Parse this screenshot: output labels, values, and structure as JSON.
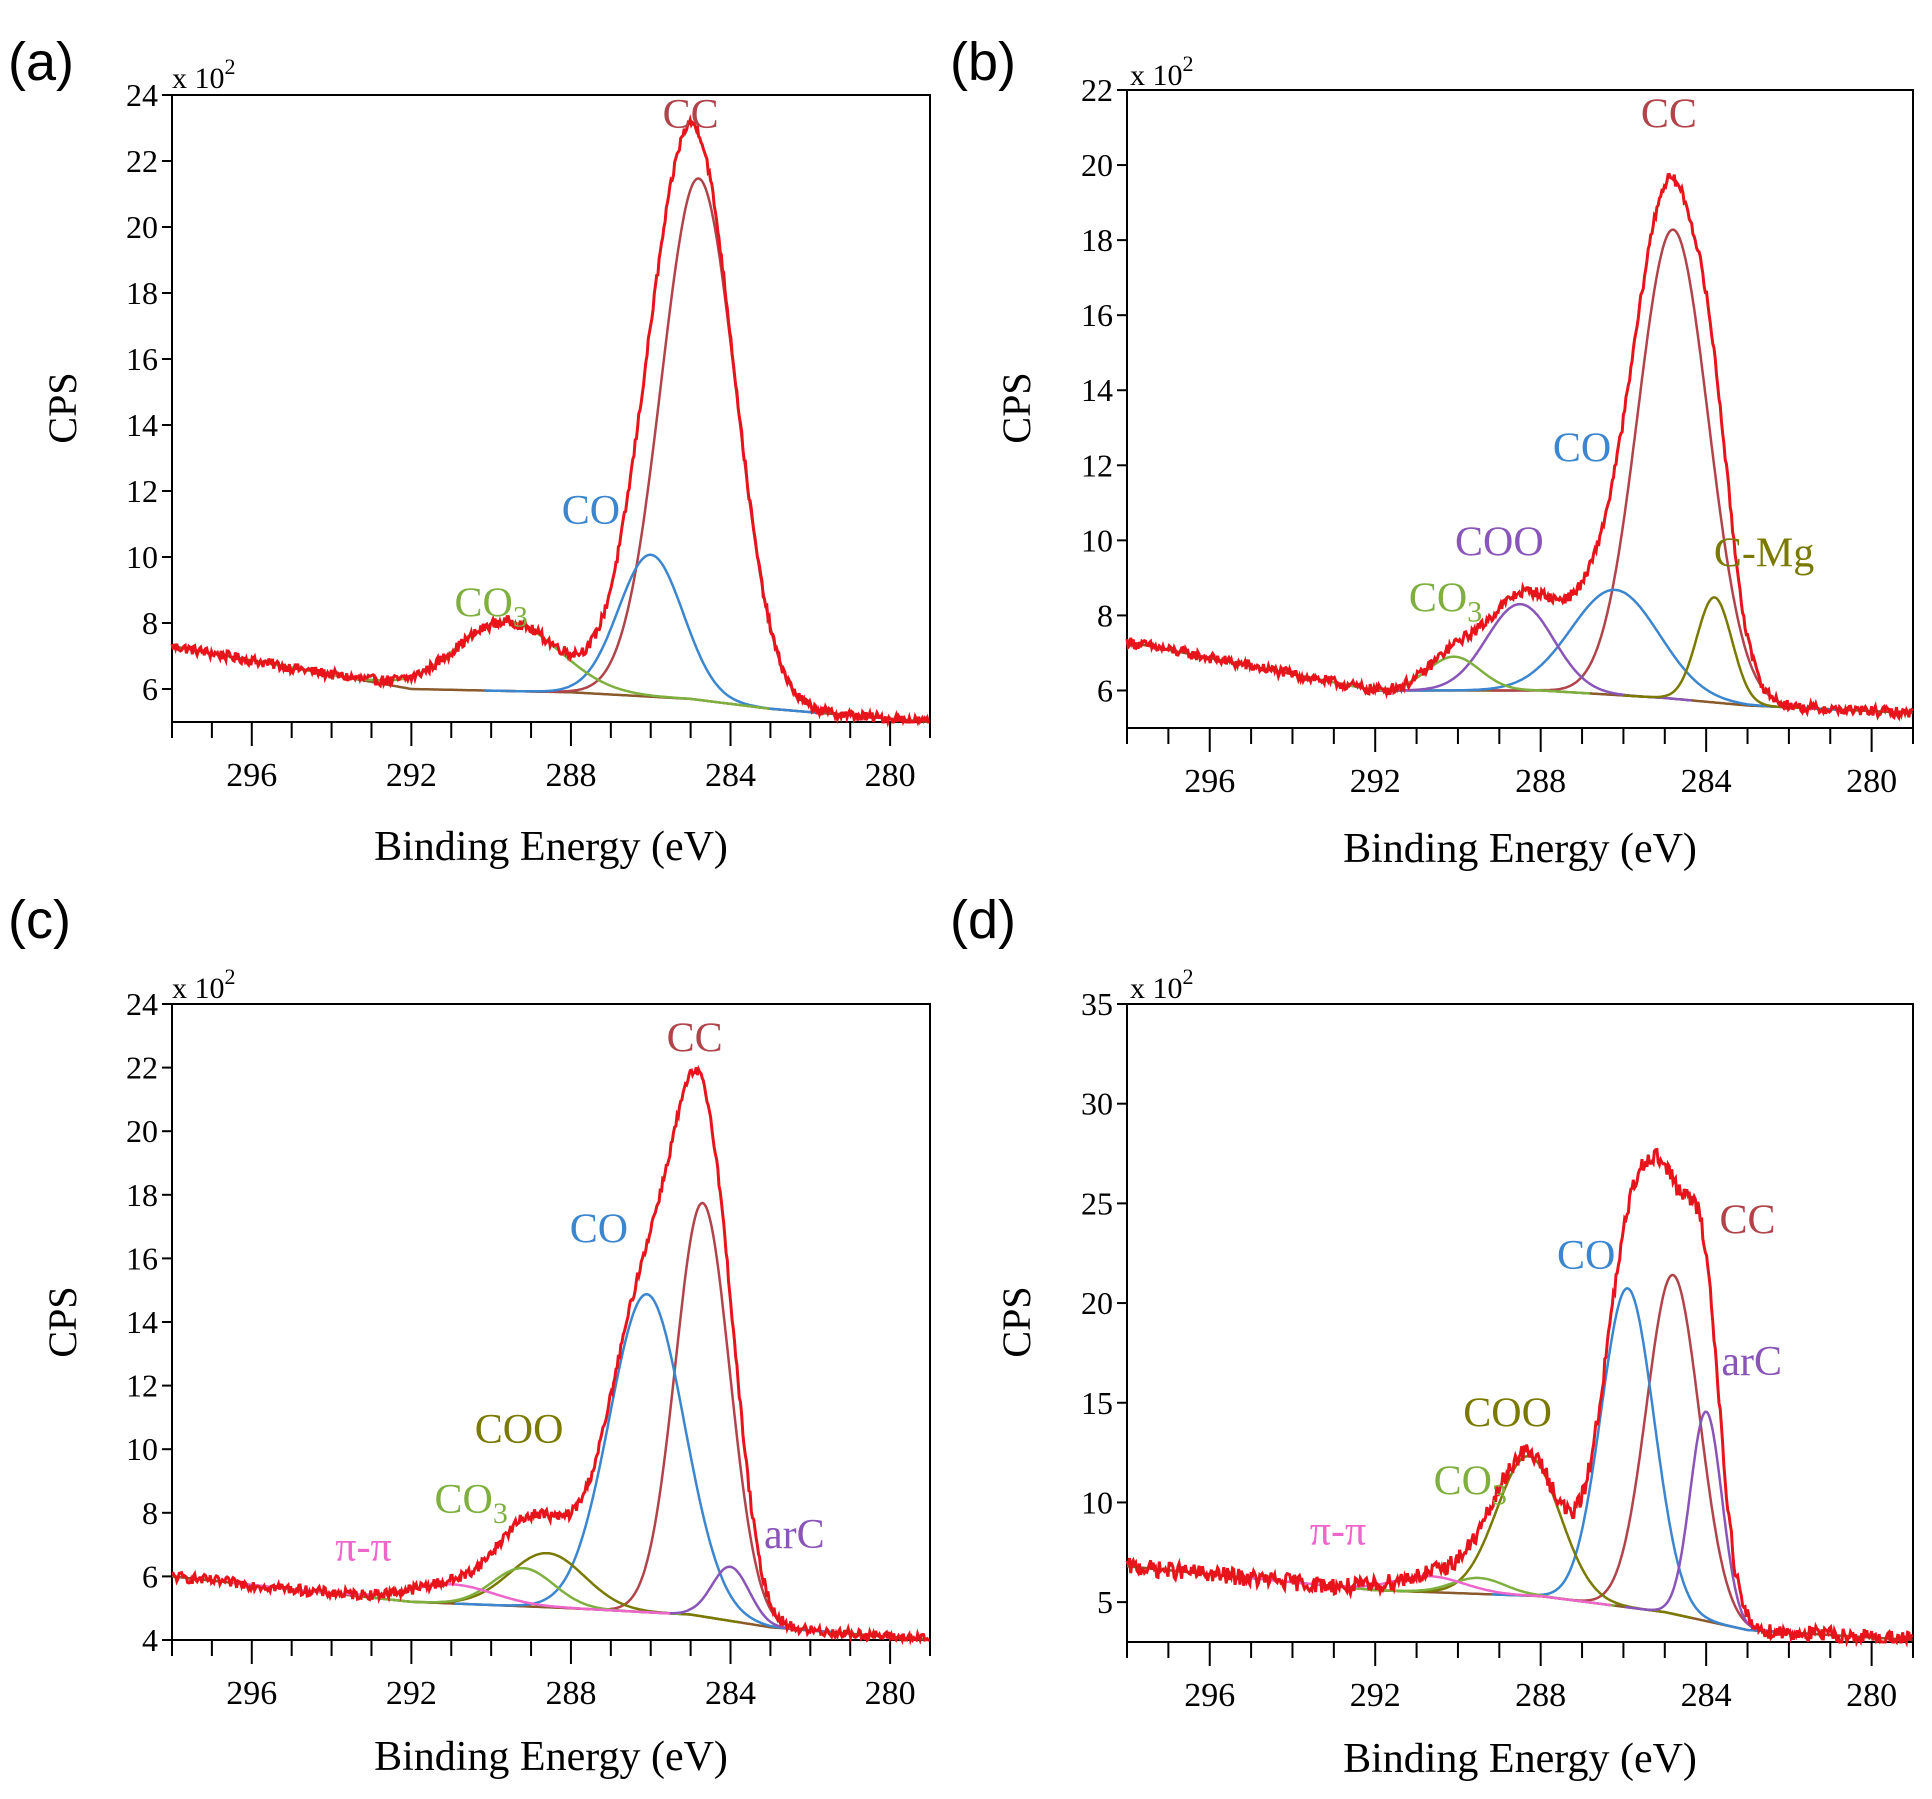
{
  "figure": {
    "panel_labels": [
      "(a)",
      "(b)",
      "(c)",
      "(d)"
    ]
  },
  "colors": {
    "envelope": "#e8141c",
    "background": "#8a5a2b",
    "CC": "#b0444a",
    "CO": "#3b86cf",
    "CO3": "#7fb03f",
    "COO_olive": "#7a7a00",
    "COO_purple": "#8a55b8",
    "C-Mg": "#7a7a00",
    "arC": "#8a55b8",
    "pi-pi": "#ee66cc",
    "axis": "#000000"
  },
  "chart_data": [
    {
      "type": "line",
      "panel": "(a)",
      "title": "",
      "xlabel": "Binding Energy (eV)",
      "ylabel": "CPS",
      "y_multiplier": "x 10",
      "y_multiplier_exp": "2",
      "xlim": [
        298,
        279
      ],
      "ylim": [
        5,
        24
      ],
      "xticks": [
        296,
        292,
        288,
        284,
        280
      ],
      "yticks": [
        6,
        8,
        10,
        12,
        14,
        16,
        18,
        20,
        22,
        24
      ],
      "envelope": {
        "name": "Envelope",
        "color": "#e8141c",
        "start_y": 7.3,
        "end_y": 5.0,
        "noise": 0.05
      },
      "background": {
        "points": [
          [
            298,
            7.3
          ],
          [
            292,
            6.0
          ],
          [
            288,
            5.9
          ],
          [
            285,
            5.7
          ],
          [
            283,
            5.4
          ],
          [
            279,
            5.0
          ]
        ]
      },
      "series": [
        {
          "name": "CC",
          "label": "CC",
          "center": 284.8,
          "amplitude": 15.8,
          "fwhm": 2.2
        },
        {
          "name": "CO",
          "label": "CO",
          "center": 286.0,
          "amplitude": 4.3,
          "fwhm": 1.9
        },
        {
          "name": "CO3",
          "label": "CO",
          "label_sub": "3",
          "center": 289.6,
          "amplitude": 2.1,
          "fwhm": 3.0
        }
      ],
      "annotations": [
        {
          "text": "CC",
          "x": 285.0,
          "y": 23.0
        },
        {
          "text": "CO",
          "x": 287.5,
          "y": 11.0
        },
        {
          "text": "CO",
          "sub": "3",
          "x": 290.0,
          "y": 8.2
        }
      ]
    },
    {
      "type": "line",
      "panel": "(b)",
      "title": "",
      "xlabel": "Binding Energy (eV)",
      "ylabel": "CPS",
      "y_multiplier": "x 10",
      "y_multiplier_exp": "2",
      "xlim": [
        298,
        279
      ],
      "ylim": [
        5,
        22
      ],
      "xticks": [
        296,
        292,
        288,
        284,
        280
      ],
      "yticks": [
        6,
        8,
        10,
        12,
        14,
        16,
        18,
        20,
        22
      ],
      "envelope": {
        "name": "Envelope",
        "color": "#e8141c",
        "start_y": 7.3,
        "end_y": 5.4,
        "noise": 0.05
      },
      "background": {
        "points": [
          [
            298,
            7.3
          ],
          [
            292,
            6.0
          ],
          [
            288,
            6.0
          ],
          [
            285,
            5.8
          ],
          [
            283,
            5.6
          ],
          [
            279,
            5.4
          ]
        ]
      },
      "series": [
        {
          "name": "CC",
          "label": "CC",
          "center": 284.8,
          "amplitude": 12.5,
          "fwhm": 2.0
        },
        {
          "name": "CO",
          "label": "CO",
          "center": 286.2,
          "amplitude": 2.8,
          "fwhm": 2.5
        },
        {
          "name": "COO",
          "label": "COO",
          "center": 288.5,
          "amplitude": 2.3,
          "fwhm": 1.9
        },
        {
          "name": "CO3",
          "label": "CO",
          "label_sub": "3",
          "center": 290.1,
          "amplitude": 0.9,
          "fwhm": 1.5
        },
        {
          "name": "C-Mg",
          "label": "C-Mg",
          "center": 283.8,
          "amplitude": 2.8,
          "fwhm": 1.0
        }
      ],
      "annotations": [
        {
          "text": "CC",
          "x": 284.9,
          "y": 21.0
        },
        {
          "text": "COO",
          "x": 289.0,
          "y": 9.6
        },
        {
          "text": "CO",
          "x": 287.0,
          "y": 12.1
        },
        {
          "text": "CO",
          "sub": "3",
          "x": 290.3,
          "y": 8.1
        },
        {
          "text": "C-Mg",
          "x": 282.6,
          "y": 9.3
        }
      ]
    },
    {
      "type": "line",
      "panel": "(c)",
      "title": "",
      "xlabel": "Binding Energy (eV)",
      "ylabel": "CPS",
      "y_multiplier": "x 10",
      "y_multiplier_exp": "2",
      "xlim": [
        298,
        279
      ],
      "ylim": [
        4,
        24
      ],
      "xticks": [
        296,
        292,
        288,
        284,
        280
      ],
      "yticks": [
        4,
        6,
        8,
        10,
        12,
        14,
        16,
        18,
        20,
        22,
        24
      ],
      "envelope": {
        "name": "Envelope",
        "color": "#e8141c",
        "start_y": 6.0,
        "end_y": 4.0,
        "noise": 0.05
      },
      "background": {
        "points": [
          [
            298,
            6.0
          ],
          [
            292,
            5.2
          ],
          [
            288,
            5.0
          ],
          [
            285,
            4.8
          ],
          [
            283,
            4.4
          ],
          [
            279,
            4.0
          ]
        ]
      },
      "series": [
        {
          "name": "CC",
          "label": "CC",
          "center": 284.7,
          "amplitude": 13.0,
          "fwhm": 1.6
        },
        {
          "name": "CO",
          "label": "CO",
          "center": 286.1,
          "amplitude": 10.0,
          "fwhm": 2.2
        },
        {
          "name": "COO",
          "label": "COO",
          "center": 288.6,
          "amplitude": 1.7,
          "fwhm": 2.2
        },
        {
          "name": "CO3",
          "label": "CO",
          "label_sub": "3",
          "center": 289.2,
          "amplitude": 1.2,
          "fwhm": 1.8
        },
        {
          "name": "arC",
          "label": "arC",
          "center": 284.0,
          "amplitude": 1.7,
          "fwhm": 1.1
        },
        {
          "name": "pi-pi",
          "label": "π-π",
          "center": 291.0,
          "amplitude": 0.6,
          "fwhm": 2.5
        }
      ],
      "annotations": [
        {
          "text": "CC",
          "x": 284.9,
          "y": 22.5
        },
        {
          "text": "CO",
          "x": 287.3,
          "y": 16.5
        },
        {
          "text": "COO",
          "x": 289.3,
          "y": 10.2
        },
        {
          "text": "CO",
          "sub": "3",
          "x": 290.5,
          "y": 8.0
        },
        {
          "text": "π-π",
          "x": 293.2,
          "y": 6.5
        },
        {
          "text": "arC",
          "x": 282.4,
          "y": 6.9
        }
      ]
    },
    {
      "type": "line",
      "panel": "(d)",
      "title": "",
      "xlabel": "Binding Energy (eV)",
      "ylabel": "CPS",
      "y_multiplier": "x 10",
      "y_multiplier_exp": "2",
      "xlim": [
        298,
        279
      ],
      "ylim": [
        3,
        35
      ],
      "xticks": [
        296,
        292,
        288,
        284,
        280
      ],
      "yticks": [
        5,
        10,
        15,
        20,
        25,
        30,
        35
      ],
      "envelope": {
        "name": "Envelope",
        "color": "#e8141c",
        "start_y": 6.8,
        "end_y": 3.1,
        "noise": 0.08
      },
      "background": {
        "points": [
          [
            298,
            6.8
          ],
          [
            292,
            5.6
          ],
          [
            288,
            5.3
          ],
          [
            285,
            4.5
          ],
          [
            283,
            3.6
          ],
          [
            279,
            3.1
          ]
        ]
      },
      "series": [
        {
          "name": "CC",
          "label": "CC",
          "center": 284.8,
          "amplitude": 17.0,
          "fwhm": 1.5
        },
        {
          "name": "CO",
          "label": "CO",
          "center": 285.9,
          "amplitude": 16.0,
          "fwhm": 1.5
        },
        {
          "name": "COO",
          "label": "COO",
          "center": 288.3,
          "amplitude": 7.0,
          "fwhm": 1.8
        },
        {
          "name": "arC",
          "label": "arC",
          "center": 284.0,
          "amplitude": 10.5,
          "fwhm": 0.9
        },
        {
          "name": "CO3",
          "label": "CO",
          "label_sub": "3",
          "center": 289.5,
          "amplitude": 0.8,
          "fwhm": 1.5
        },
        {
          "name": "pi-pi",
          "label": "π-π",
          "center": 290.7,
          "amplitude": 0.8,
          "fwhm": 2.0
        }
      ],
      "annotations": [
        {
          "text": "CC",
          "x": 283.0,
          "y": 23.5
        },
        {
          "text": "CO",
          "x": 286.9,
          "y": 21.7
        },
        {
          "text": "COO",
          "x": 288.8,
          "y": 13.8
        },
        {
          "text": "CO",
          "sub": "3",
          "x": 289.7,
          "y": 10.4
        },
        {
          "text": "π-π",
          "x": 292.9,
          "y": 7.9
        },
        {
          "text": "arC",
          "x": 282.9,
          "y": 16.4
        }
      ]
    }
  ]
}
